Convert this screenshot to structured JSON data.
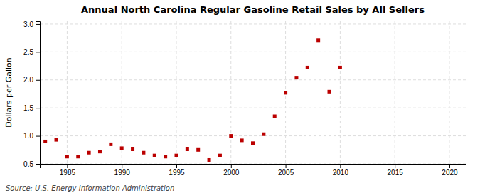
{
  "chart_data": {
    "type": "scatter",
    "title": "Annual North Carolina Regular Gasoline Retail Sales by All Sellers",
    "ylabel": "Dollars per Gallon",
    "annotation": "Source: U.S. Energy Information Administration",
    "color": "#bb0000",
    "marker": "square",
    "grid": true,
    "xlim": [
      1982.5,
      2021.5
    ],
    "ylim": [
      0.5,
      3.05
    ],
    "xticks": [
      1985,
      1990,
      1995,
      2000,
      2005,
      2010,
      2015,
      2020
    ],
    "yticks": [
      0.5,
      {
        "value": 1.0,
        "label": "1.0"
      },
      1.5,
      {
        "value": 2.0,
        "label": "2.0"
      },
      2.5,
      {
        "value": 3.0,
        "label": "3.0"
      }
    ],
    "x": [
      1983,
      1984,
      1985,
      1986,
      1987,
      1988,
      1989,
      1990,
      1991,
      1992,
      1993,
      1994,
      1995,
      1996,
      1997,
      1998,
      1999,
      2000,
      2001,
      2002,
      2003,
      2004,
      2005,
      2006,
      2007,
      2008,
      2009,
      2010
    ],
    "values": [
      0.9,
      0.93,
      0.63,
      0.63,
      0.7,
      0.72,
      0.85,
      0.78,
      0.76,
      0.7,
      0.65,
      0.63,
      0.65,
      0.76,
      0.75,
      0.57,
      0.65,
      1.0,
      0.92,
      0.87,
      1.03,
      1.35,
      1.77,
      2.04,
      2.22,
      2.71,
      1.79,
      2.22
    ]
  }
}
